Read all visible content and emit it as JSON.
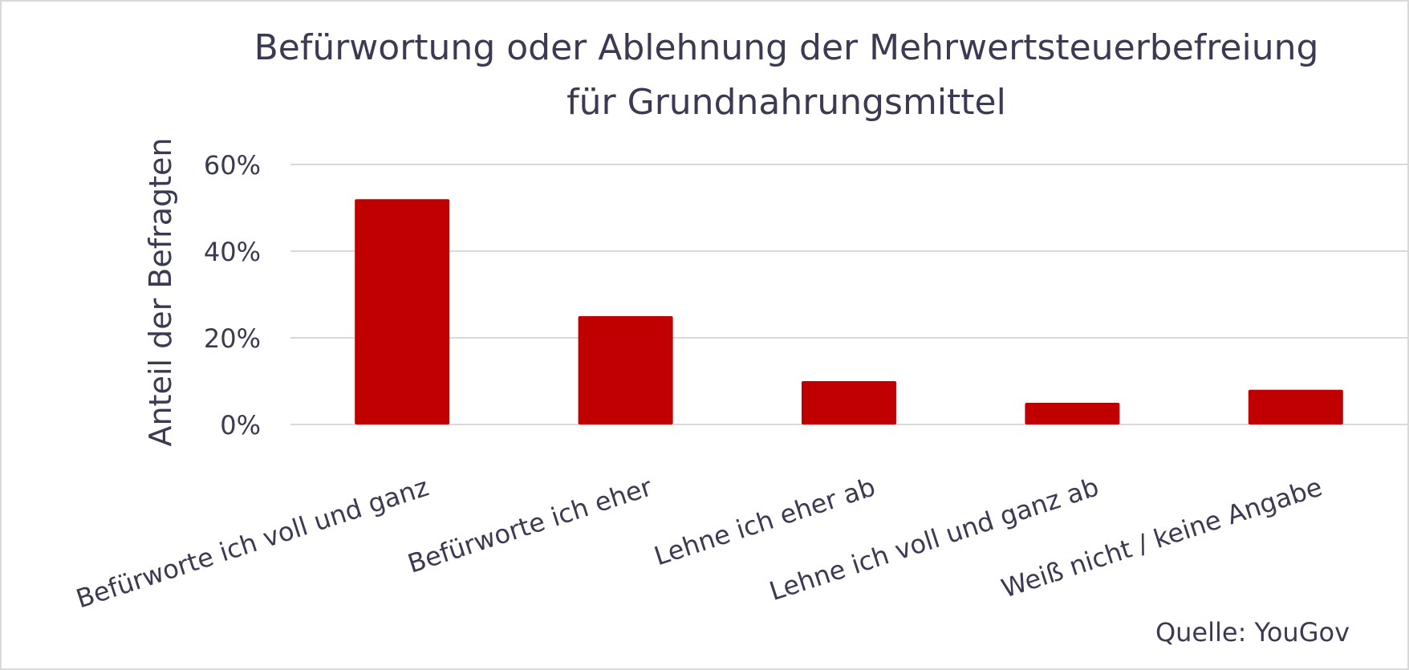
{
  "chart_data": {
    "type": "bar",
    "title_lines": [
      "Befürwortung oder Ablehnung der Mehrwertsteuerbefreiung",
      "für Grundnahrungsmittel"
    ],
    "xlabel": "",
    "ylabel": "Anteil der Befragten",
    "categories": [
      "Befürworte ich voll und ganz",
      "Befürworte ich eher",
      "Lehne ich eher ab",
      "Lehne ich voll und ganz ab",
      "Weiß nicht / keine Angabe"
    ],
    "values": [
      52,
      25,
      10,
      5,
      8
    ],
    "value_format": "percent",
    "ylim": [
      0,
      60
    ],
    "yticks": [
      0,
      20,
      40,
      60
    ],
    "ytick_labels": [
      "0%",
      "20%",
      "40%",
      "60%"
    ],
    "grid": true,
    "bar_color": "#c00000",
    "gridline_color": "#d9d9d9",
    "text_color": "#3a3a52",
    "source": "Quelle: YouGov"
  }
}
